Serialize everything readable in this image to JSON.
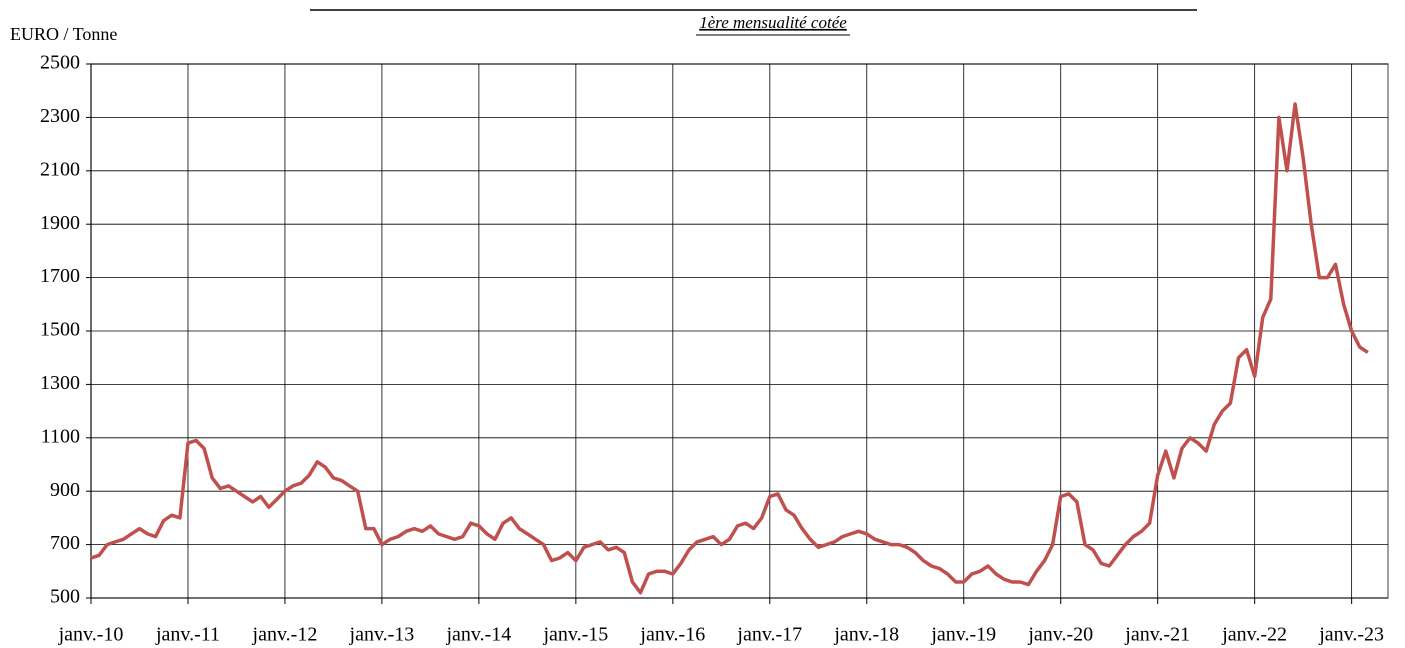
{
  "chart_data": {
    "type": "line",
    "subtitle": "1ère mensualité cotée",
    "ylabel": "EURO / Tonne",
    "x": [
      0,
      1,
      2,
      3,
      4,
      5,
      6,
      7,
      8,
      9,
      10,
      11,
      12,
      13,
      14,
      15,
      16,
      17,
      18,
      19,
      20,
      21,
      22,
      23,
      24,
      25,
      26,
      27,
      28,
      29,
      30,
      31,
      32,
      33,
      34,
      35,
      36,
      37,
      38,
      39,
      40,
      41,
      42,
      43,
      44,
      45,
      46,
      47,
      48,
      49,
      50,
      51,
      52,
      53,
      54,
      55,
      56,
      57,
      58,
      59,
      60,
      61,
      62,
      63,
      64,
      65,
      66,
      67,
      68,
      69,
      70,
      71,
      72,
      73,
      74,
      75,
      76,
      77,
      78,
      79,
      80,
      81,
      82,
      83,
      84,
      85,
      86,
      87,
      88,
      89,
      90,
      91,
      92,
      93,
      94,
      95,
      96,
      97,
      98,
      99,
      100,
      101,
      102,
      103,
      104,
      105,
      106,
      107,
      108,
      109,
      110,
      111,
      112,
      113,
      114,
      115,
      116,
      117,
      118,
      119,
      120,
      121,
      122,
      123,
      124,
      125,
      126,
      127,
      128,
      129,
      130,
      131,
      132,
      133,
      134,
      135,
      136,
      137,
      138,
      139,
      140,
      141,
      142,
      143,
      144,
      145,
      146,
      147,
      148,
      149,
      150,
      151,
      152,
      153,
      154,
      155,
      156,
      157,
      158
    ],
    "series": [
      {
        "name": "1ère mensualité cotée",
        "color": "#c0504d",
        "values": [
          650,
          660,
          700,
          710,
          720,
          740,
          760,
          740,
          730,
          790,
          810,
          800,
          1080,
          1090,
          1060,
          950,
          910,
          920,
          900,
          880,
          860,
          880,
          840,
          870,
          900,
          920,
          930,
          960,
          1010,
          990,
          950,
          940,
          920,
          900,
          760,
          760,
          700,
          720,
          730,
          750,
          760,
          750,
          770,
          740,
          730,
          720,
          730,
          780,
          770,
          740,
          720,
          780,
          800,
          760,
          740,
          720,
          700,
          640,
          650,
          670,
          640,
          690,
          700,
          710,
          680,
          690,
          670,
          560,
          520,
          590,
          600,
          600,
          590,
          630,
          680,
          710,
          720,
          730,
          700,
          720,
          770,
          780,
          760,
          800,
          880,
          890,
          830,
          810,
          760,
          720,
          690,
          700,
          710,
          730,
          740,
          750,
          740,
          720,
          710,
          700,
          700,
          690,
          670,
          640,
          620,
          610,
          590,
          560,
          560,
          590,
          600,
          620,
          590,
          570,
          560,
          560,
          550,
          600,
          640,
          700,
          880,
          890,
          860,
          700,
          680,
          630,
          620,
          660,
          700,
          730,
          750,
          780,
          960,
          1050,
          950,
          1060,
          1100,
          1080,
          1050,
          1150,
          1200,
          1230,
          1400,
          1430,
          1330,
          1550,
          1620,
          2300,
          2100,
          2350,
          2150,
          1900,
          1700,
          1700,
          1750,
          1600,
          1500,
          1440,
          1420
        ]
      }
    ],
    "xlim": [
      0,
      160.5
    ],
    "xticks": [
      {
        "value": 0,
        "label": "janv.-10"
      },
      {
        "value": 12,
        "label": "janv.-11"
      },
      {
        "value": 24,
        "label": "janv.-12"
      },
      {
        "value": 36,
        "label": "janv.-13"
      },
      {
        "value": 48,
        "label": "janv.-14"
      },
      {
        "value": 60,
        "label": "janv.-15"
      },
      {
        "value": 72,
        "label": "janv.-16"
      },
      {
        "value": 84,
        "label": "janv.-17"
      },
      {
        "value": 96,
        "label": "janv.-18"
      },
      {
        "value": 108,
        "label": "janv.-19"
      },
      {
        "value": 120,
        "label": "janv.-20"
      },
      {
        "value": 132,
        "label": "janv.-21"
      },
      {
        "value": 144,
        "label": "janv.-22"
      },
      {
        "value": 156,
        "label": "janv.-23"
      }
    ],
    "ylim": [
      500,
      2500
    ],
    "yticks": [
      500,
      700,
      900,
      1100,
      1300,
      1500,
      1700,
      1900,
      2100,
      2300,
      2500
    ],
    "grid": true
  }
}
